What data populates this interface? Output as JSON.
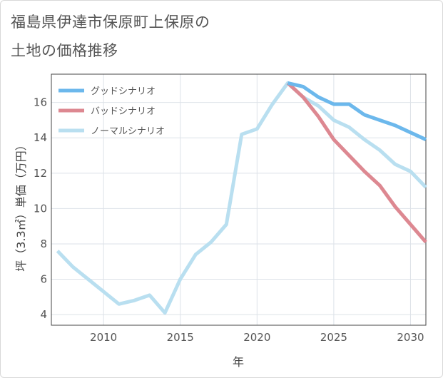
{
  "title_line1": "福島県伊達市保原町上保原の",
  "title_line2": "土地の価格推移",
  "chart_data": {
    "type": "line",
    "xlabel": "年",
    "ylabel": "坪（3.3㎡）単価（万円）",
    "xlim": [
      2006.6,
      2031
    ],
    "ylim": [
      3.4,
      17.6
    ],
    "xticks": [
      2010,
      2015,
      2020,
      2025,
      2030
    ],
    "yticks": [
      4,
      6,
      8,
      10,
      12,
      14,
      16
    ],
    "grid": true,
    "legend_position": "top-left",
    "series": [
      {
        "name": "グッドシナリオ",
        "color": "#6cb8ec",
        "x": [
          2022,
          2023,
          2024,
          2025,
          2026,
          2027,
          2028,
          2029,
          2030,
          2031
        ],
        "y": [
          17.1,
          16.9,
          16.3,
          15.9,
          15.9,
          15.3,
          15.0,
          14.7,
          14.3,
          13.9
        ]
      },
      {
        "name": "バッドシナリオ",
        "color": "#dd8891",
        "x": [
          2022,
          2023,
          2024,
          2025,
          2026,
          2027,
          2028,
          2029,
          2030,
          2031
        ],
        "y": [
          17.1,
          16.3,
          15.2,
          13.9,
          13.0,
          12.1,
          11.3,
          10.1,
          9.1,
          8.1
        ]
      },
      {
        "name": "ノーマルシナリオ",
        "color": "#b9dff0",
        "x": [
          2007,
          2008,
          2009,
          2010,
          2011,
          2012,
          2013,
          2014,
          2015,
          2016,
          2017,
          2018,
          2019,
          2020,
          2021,
          2022,
          2023,
          2024,
          2025,
          2026,
          2027,
          2028,
          2029,
          2030,
          2031
        ],
        "y": [
          7.6,
          6.7,
          6.0,
          5.3,
          4.6,
          4.8,
          5.1,
          4.1,
          6.0,
          7.4,
          8.1,
          9.1,
          14.2,
          14.5,
          15.9,
          17.1,
          16.3,
          15.8,
          15.0,
          14.6,
          13.9,
          13.3,
          12.5,
          12.1,
          11.2
        ]
      }
    ]
  }
}
